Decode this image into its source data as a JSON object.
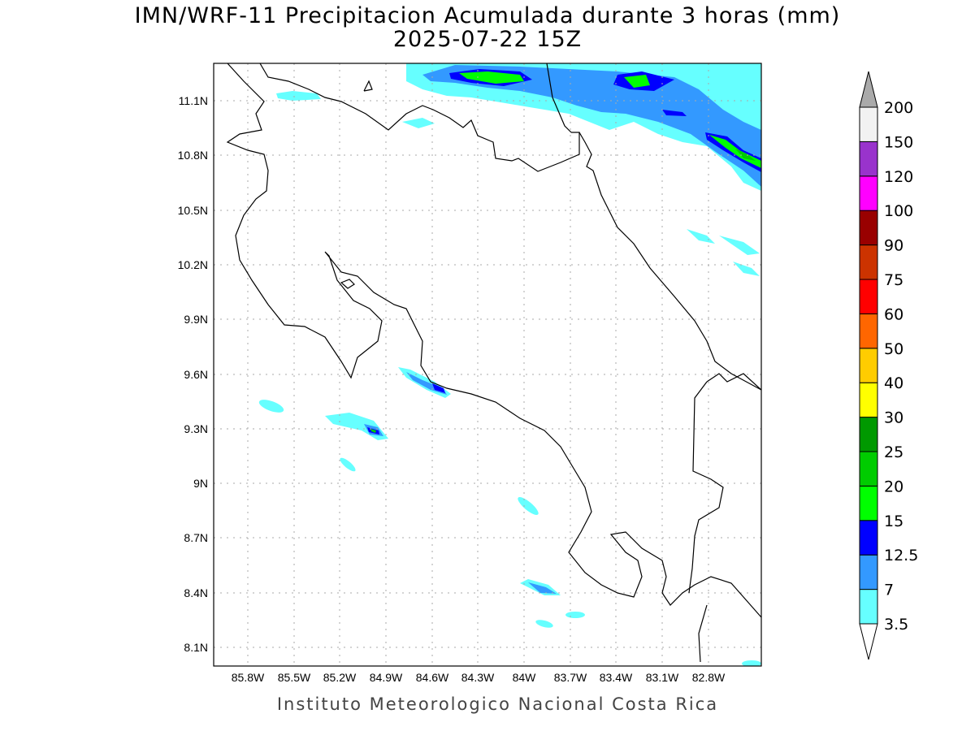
{
  "title": "IMN/WRF-11 Precipitacion Acumulada durante 3 horas (mm)",
  "subtitle": "2025-07-22 15Z",
  "footer": "Instituto Meteorologico Nacional Costa Rica",
  "lat_labels": [
    "11.1N",
    "10.8N",
    "10.5N",
    "10.2N",
    "9.9N",
    "9.6N",
    "9.3N",
    "9N",
    "8.7N",
    "8.4N",
    "8.1N"
  ],
  "lon_labels": [
    "85.8W",
    "85.5W",
    "85.2W",
    "84.9W",
    "84.6W",
    "84.3W",
    "84W",
    "83.7W",
    "83.4W",
    "83.1W",
    "82.8W"
  ],
  "colorbar": {
    "levels": [
      "3.5",
      "7",
      "12.5",
      "15",
      "20",
      "25",
      "30",
      "40",
      "50",
      "60",
      "75",
      "90",
      "100",
      "120",
      "150",
      "200"
    ],
    "colors": [
      "#66ffff",
      "#3399ff",
      "#0000ff",
      "#00ff00",
      "#00cc00",
      "#009900",
      "#ffff00",
      "#ffcc00",
      "#ff6600",
      "#ff0000",
      "#cc3300",
      "#990000",
      "#ff00ff",
      "#9933cc",
      "#f2f2f2"
    ],
    "over_color": "#aaaaaa",
    "under_color": "#ffffff"
  }
}
